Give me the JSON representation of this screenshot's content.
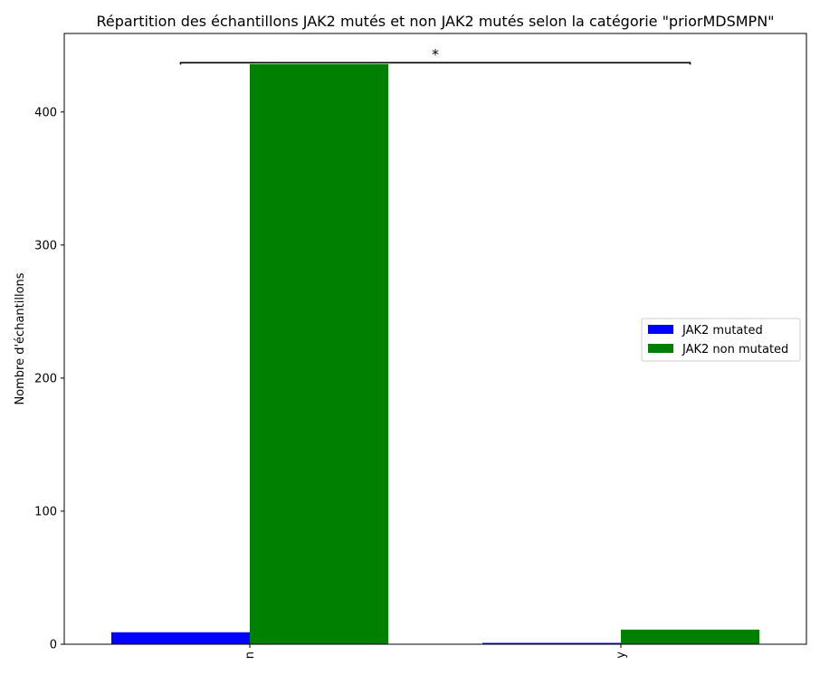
{
  "chart_data": {
    "type": "bar",
    "title": "Répartition des échantillons JAK2 mutés et non JAK2 mutés selon la catégorie \"priorMDSMPN\"",
    "xlabel": "",
    "ylabel": "Nombre d'échantillons",
    "categories": [
      "n",
      "y"
    ],
    "series": [
      {
        "name": "JAK2 mutated",
        "values": [
          9,
          1
        ],
        "color": "#0000ff"
      },
      {
        "name": "JAK2 non mutated",
        "values": [
          436,
          11
        ],
        "color": "#008000"
      }
    ],
    "ylim": [
      0,
      459
    ],
    "yticks": [
      0,
      100,
      200,
      300,
      400
    ],
    "grid": false,
    "legend": {
      "placement": "center-right"
    },
    "annotation": {
      "text": "*",
      "value": 437
    }
  }
}
